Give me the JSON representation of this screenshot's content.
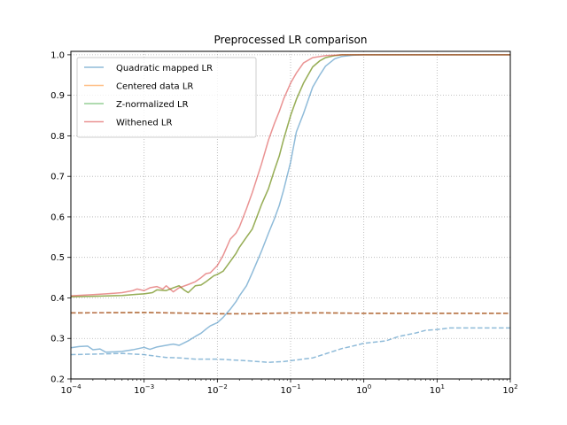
{
  "chart_data": {
    "type": "line",
    "title": "Preprocessed LR comparison",
    "xlabel": "",
    "ylabel": "",
    "xscale": "log",
    "xlim": [
      0.0001,
      100
    ],
    "ylim": [
      0.2,
      1.0
    ],
    "grid": true,
    "legend_position": "top-left",
    "x_ticks": [
      {
        "value": 0.0001,
        "base": "10",
        "exp": "−4"
      },
      {
        "value": 0.001,
        "base": "10",
        "exp": "−3"
      },
      {
        "value": 0.01,
        "base": "10",
        "exp": "−2"
      },
      {
        "value": 0.1,
        "base": "10",
        "exp": "−1"
      },
      {
        "value": 1,
        "base": "10",
        "exp": "0"
      },
      {
        "value": 10,
        "base": "10",
        "exp": "1"
      },
      {
        "value": 100,
        "base": "10",
        "exp": "2"
      }
    ],
    "y_ticks": [
      {
        "value": 0.2,
        "label": "0.2"
      },
      {
        "value": 0.3,
        "label": "0.3"
      },
      {
        "value": 0.4,
        "label": "0.4"
      },
      {
        "value": 0.5,
        "label": "0.5"
      },
      {
        "value": 0.6,
        "label": "0.6"
      },
      {
        "value": 0.7,
        "label": "0.7"
      },
      {
        "value": 0.8,
        "label": "0.8"
      },
      {
        "value": 0.9,
        "label": "0.9"
      },
      {
        "value": 1.0,
        "label": "1.0"
      }
    ],
    "series": [
      {
        "name": "Quadratic mapped LR",
        "color": "#1f77b4",
        "dash": false,
        "points": [
          [
            0.0001,
            0.277
          ],
          [
            0.00013,
            0.28
          ],
          [
            0.00017,
            0.281
          ],
          [
            0.0002,
            0.272
          ],
          [
            0.00025,
            0.274
          ],
          [
            0.0003,
            0.266
          ],
          [
            0.0004,
            0.267
          ],
          [
            0.0005,
            0.268
          ],
          [
            0.0007,
            0.272
          ],
          [
            0.001,
            0.278
          ],
          [
            0.0012,
            0.273
          ],
          [
            0.0015,
            0.279
          ],
          [
            0.002,
            0.283
          ],
          [
            0.0025,
            0.286
          ],
          [
            0.003,
            0.283
          ],
          [
            0.004,
            0.294
          ],
          [
            0.005,
            0.305
          ],
          [
            0.006,
            0.313
          ],
          [
            0.007,
            0.323
          ],
          [
            0.008,
            0.331
          ],
          [
            0.01,
            0.339
          ],
          [
            0.012,
            0.352
          ],
          [
            0.015,
            0.372
          ],
          [
            0.018,
            0.391
          ],
          [
            0.02,
            0.405
          ],
          [
            0.025,
            0.43
          ],
          [
            0.03,
            0.462
          ],
          [
            0.04,
            0.515
          ],
          [
            0.05,
            0.56
          ],
          [
            0.06,
            0.595
          ],
          [
            0.07,
            0.628
          ],
          [
            0.08,
            0.665
          ],
          [
            0.1,
            0.735
          ],
          [
            0.12,
            0.81
          ],
          [
            0.15,
            0.855
          ],
          [
            0.2,
            0.92
          ],
          [
            0.25,
            0.95
          ],
          [
            0.3,
            0.972
          ],
          [
            0.4,
            0.99
          ],
          [
            0.5,
            0.996
          ],
          [
            0.7,
            0.999
          ],
          [
            1,
            1.0
          ],
          [
            10,
            1.0
          ],
          [
            100,
            1.0
          ]
        ]
      },
      {
        "name": "Centered data LR",
        "color": "#ff7f0e",
        "dash": false,
        "points": [
          [
            0.0001,
            0.403
          ],
          [
            0.0002,
            0.404
          ],
          [
            0.0005,
            0.406
          ],
          [
            0.0008,
            0.409
          ],
          [
            0.001,
            0.41
          ],
          [
            0.0013,
            0.413
          ],
          [
            0.0015,
            0.42
          ],
          [
            0.002,
            0.418
          ],
          [
            0.0025,
            0.425
          ],
          [
            0.003,
            0.43
          ],
          [
            0.0035,
            0.42
          ],
          [
            0.004,
            0.413
          ],
          [
            0.005,
            0.43
          ],
          [
            0.006,
            0.432
          ],
          [
            0.007,
            0.44
          ],
          [
            0.008,
            0.448
          ],
          [
            0.009,
            0.455
          ],
          [
            0.01,
            0.458
          ],
          [
            0.012,
            0.466
          ],
          [
            0.015,
            0.49
          ],
          [
            0.018,
            0.51
          ],
          [
            0.02,
            0.525
          ],
          [
            0.025,
            0.55
          ],
          [
            0.03,
            0.57
          ],
          [
            0.04,
            0.63
          ],
          [
            0.05,
            0.67
          ],
          [
            0.06,
            0.715
          ],
          [
            0.07,
            0.75
          ],
          [
            0.08,
            0.79
          ],
          [
            0.1,
            0.85
          ],
          [
            0.12,
            0.89
          ],
          [
            0.15,
            0.93
          ],
          [
            0.2,
            0.97
          ],
          [
            0.25,
            0.985
          ],
          [
            0.3,
            0.993
          ],
          [
            0.4,
            0.998
          ],
          [
            0.5,
            1.0
          ],
          [
            1,
            1.0
          ],
          [
            10,
            1.0
          ],
          [
            100,
            1.0
          ]
        ]
      },
      {
        "name": "Z-normalized LR",
        "color": "#2ca02c",
        "dash": false,
        "points": [
          [
            0.0001,
            0.403
          ],
          [
            0.0002,
            0.404
          ],
          [
            0.0005,
            0.406
          ],
          [
            0.0008,
            0.409
          ],
          [
            0.001,
            0.41
          ],
          [
            0.0013,
            0.413
          ],
          [
            0.0015,
            0.42
          ],
          [
            0.002,
            0.418
          ],
          [
            0.0025,
            0.425
          ],
          [
            0.003,
            0.43
          ],
          [
            0.0035,
            0.42
          ],
          [
            0.004,
            0.413
          ],
          [
            0.005,
            0.43
          ],
          [
            0.006,
            0.432
          ],
          [
            0.007,
            0.44
          ],
          [
            0.008,
            0.448
          ],
          [
            0.009,
            0.455
          ],
          [
            0.01,
            0.458
          ],
          [
            0.012,
            0.466
          ],
          [
            0.015,
            0.49
          ],
          [
            0.018,
            0.51
          ],
          [
            0.02,
            0.525
          ],
          [
            0.025,
            0.55
          ],
          [
            0.03,
            0.57
          ],
          [
            0.04,
            0.63
          ],
          [
            0.05,
            0.67
          ],
          [
            0.06,
            0.715
          ],
          [
            0.07,
            0.75
          ],
          [
            0.08,
            0.79
          ],
          [
            0.1,
            0.85
          ],
          [
            0.12,
            0.89
          ],
          [
            0.15,
            0.93
          ],
          [
            0.2,
            0.97
          ],
          [
            0.25,
            0.985
          ],
          [
            0.3,
            0.993
          ],
          [
            0.4,
            0.998
          ],
          [
            0.5,
            1.0
          ],
          [
            1,
            1.0
          ],
          [
            10,
            1.0
          ],
          [
            100,
            1.0
          ]
        ]
      },
      {
        "name": "Withened LR",
        "color": "#d62728",
        "dash": false,
        "points": [
          [
            0.0001,
            0.405
          ],
          [
            0.0002,
            0.408
          ],
          [
            0.0003,
            0.41
          ],
          [
            0.0005,
            0.413
          ],
          [
            0.0007,
            0.418
          ],
          [
            0.0008,
            0.422
          ],
          [
            0.001,
            0.418
          ],
          [
            0.0012,
            0.425
          ],
          [
            0.0015,
            0.428
          ],
          [
            0.0018,
            0.422
          ],
          [
            0.002,
            0.43
          ],
          [
            0.0025,
            0.415
          ],
          [
            0.003,
            0.425
          ],
          [
            0.004,
            0.433
          ],
          [
            0.005,
            0.44
          ],
          [
            0.006,
            0.45
          ],
          [
            0.007,
            0.46
          ],
          [
            0.008,
            0.462
          ],
          [
            0.01,
            0.48
          ],
          [
            0.012,
            0.505
          ],
          [
            0.015,
            0.545
          ],
          [
            0.018,
            0.56
          ],
          [
            0.02,
            0.575
          ],
          [
            0.025,
            0.62
          ],
          [
            0.03,
            0.66
          ],
          [
            0.04,
            0.73
          ],
          [
            0.05,
            0.79
          ],
          [
            0.06,
            0.83
          ],
          [
            0.07,
            0.86
          ],
          [
            0.08,
            0.89
          ],
          [
            0.1,
            0.93
          ],
          [
            0.12,
            0.955
          ],
          [
            0.15,
            0.98
          ],
          [
            0.2,
            0.993
          ],
          [
            0.3,
            0.998
          ],
          [
            0.5,
            1.0
          ],
          [
            1,
            1.0
          ],
          [
            10,
            1.0
          ],
          [
            100,
            1.0
          ]
        ]
      },
      {
        "name": "",
        "color": "#1f77b4",
        "dash": true,
        "points": [
          [
            0.0001,
            0.26
          ],
          [
            0.0005,
            0.263
          ],
          [
            0.001,
            0.26
          ],
          [
            0.002,
            0.253
          ],
          [
            0.003,
            0.252
          ],
          [
            0.005,
            0.249
          ],
          [
            0.01,
            0.249
          ],
          [
            0.02,
            0.246
          ],
          [
            0.03,
            0.244
          ],
          [
            0.05,
            0.241
          ],
          [
            0.08,
            0.243
          ],
          [
            0.1,
            0.245
          ],
          [
            0.2,
            0.252
          ],
          [
            0.3,
            0.262
          ],
          [
            0.5,
            0.275
          ],
          [
            0.7,
            0.281
          ],
          [
            1,
            0.288
          ],
          [
            2,
            0.294
          ],
          [
            3,
            0.305
          ],
          [
            5,
            0.313
          ],
          [
            7,
            0.32
          ],
          [
            10,
            0.322
          ],
          [
            15,
            0.326
          ],
          [
            100,
            0.326
          ]
        ]
      },
      {
        "name": "",
        "color": "#ff7f0e",
        "dash": true,
        "points": [
          [
            0.0001,
            0.363
          ],
          [
            0.001,
            0.364
          ],
          [
            0.005,
            0.362
          ],
          [
            0.01,
            0.361
          ],
          [
            0.03,
            0.361
          ],
          [
            0.1,
            0.363
          ],
          [
            0.3,
            0.363
          ],
          [
            1,
            0.362
          ],
          [
            10,
            0.362
          ],
          [
            100,
            0.362
          ]
        ]
      },
      {
        "name": "",
        "color": "#2ca02c",
        "dash": true,
        "points": [
          [
            0.0001,
            0.363
          ],
          [
            0.001,
            0.364
          ],
          [
            0.005,
            0.362
          ],
          [
            0.01,
            0.361
          ],
          [
            0.03,
            0.361
          ],
          [
            0.1,
            0.363
          ],
          [
            0.3,
            0.363
          ],
          [
            1,
            0.362
          ],
          [
            10,
            0.362
          ],
          [
            100,
            0.362
          ]
        ]
      },
      {
        "name": "",
        "color": "#d62728",
        "dash": true,
        "points": [
          [
            0.0001,
            0.363
          ],
          [
            0.001,
            0.364
          ],
          [
            0.005,
            0.362
          ],
          [
            0.01,
            0.361
          ],
          [
            0.03,
            0.361
          ],
          [
            0.1,
            0.363
          ],
          [
            0.3,
            0.363
          ],
          [
            1,
            0.362
          ],
          [
            10,
            0.362
          ],
          [
            100,
            0.362
          ]
        ]
      }
    ]
  }
}
